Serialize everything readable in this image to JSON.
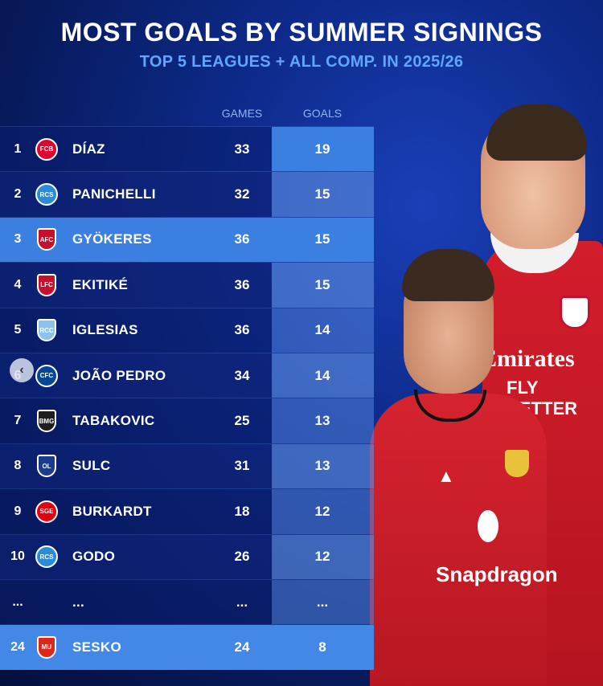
{
  "title": "MOST GOALS BY SUMMER SIGNINGS",
  "subtitle": "TOP 5 LEAGUES + ALL COMP. IN 2025/26",
  "columns": {
    "games": "GAMES",
    "goals": "GOALS"
  },
  "colors": {
    "accent": "#3b7fe0",
    "subtitle": "#5fa6ff",
    "background": "#0d2a8a"
  },
  "rows": [
    {
      "rank": "1",
      "name": "DÍAZ",
      "games": "33",
      "goals": "19",
      "crest": "bayern-crest",
      "crest_color": "#dc052d"
    },
    {
      "rank": "2",
      "name": "PANICHELLI",
      "games": "32",
      "goals": "15",
      "crest": "strasbourg-crest",
      "crest_color": "#2a8bd9"
    },
    {
      "rank": "3",
      "name": "GYÖKERES",
      "games": "36",
      "goals": "15",
      "crest": "arsenal-crest",
      "crest_color": "#c8102e"
    },
    {
      "rank": "4",
      "name": "EKITIKÉ",
      "games": "36",
      "goals": "15",
      "crest": "liverpool-crest",
      "crest_color": "#c8102e"
    },
    {
      "rank": "5",
      "name": "IGLESIAS",
      "games": "36",
      "goals": "14",
      "crest": "celta-crest",
      "crest_color": "#8ac3ee"
    },
    {
      "rank": "6",
      "name": "JOÃO PEDRO",
      "games": "34",
      "goals": "14",
      "crest": "chelsea-crest",
      "crest_color": "#034694"
    },
    {
      "rank": "7",
      "name": "TABAKOVIC",
      "games": "25",
      "goals": "13",
      "crest": "gladbach-crest",
      "crest_color": "#1e1e1e"
    },
    {
      "rank": "8",
      "name": "SULC",
      "games": "31",
      "goals": "13",
      "crest": "lyon-crest",
      "crest_color": "#1b3b8f"
    },
    {
      "rank": "9",
      "name": "BURKARDT",
      "games": "18",
      "goals": "12",
      "crest": "frankfurt-crest",
      "crest_color": "#e1000f"
    },
    {
      "rank": "10",
      "name": "GODO",
      "games": "26",
      "goals": "12",
      "crest": "strasbourg-crest",
      "crest_color": "#2a8bd9"
    },
    {
      "rank": "...",
      "name": "...",
      "games": "...",
      "goals": "...",
      "crest": "",
      "crest_color": ""
    },
    {
      "rank": "24",
      "name": "SESKO",
      "games": "24",
      "goals": "8",
      "crest": "manutd-crest",
      "crest_color": "#da291c"
    }
  ],
  "players": {
    "back_sponsor_line1": "Emirates",
    "back_sponsor_line2": "FLY BETTER",
    "front_sponsor": "Snapdragon"
  },
  "nav": {
    "prev_icon": "chevron-left-icon"
  }
}
